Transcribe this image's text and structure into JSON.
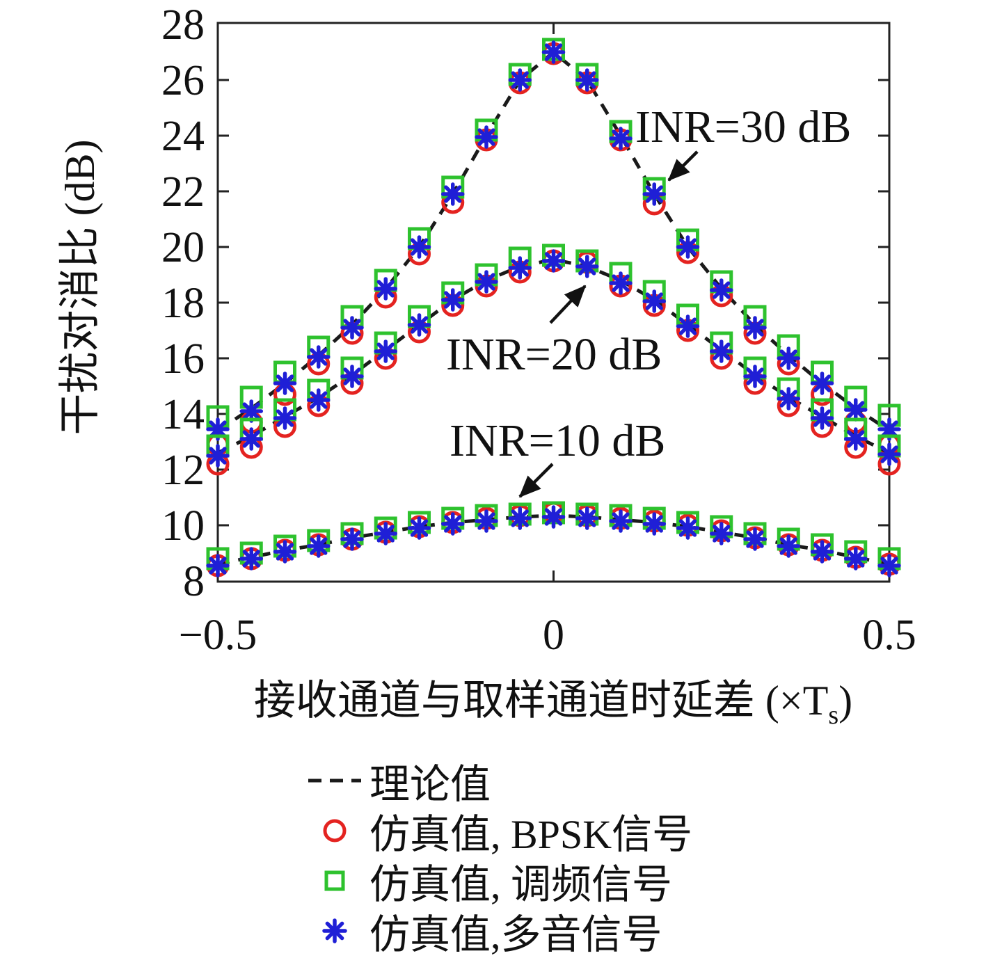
{
  "axes": {
    "y": {
      "title": "干扰对消比 (dB)",
      "ticks": [
        28,
        26,
        24,
        22,
        20,
        18,
        16,
        14,
        12,
        10,
        8
      ],
      "tick_labels": [
        "28",
        "26",
        "24",
        "22",
        "20",
        "18",
        "16",
        "14",
        "12",
        "10",
        "8"
      ],
      "range": [
        8,
        28
      ]
    },
    "x": {
      "title_pre": "接收通道与取样通道时延差 (×T",
      "title_sub": "s",
      "title_post": ")",
      "ticks": [
        -0.5,
        0,
        0.5
      ],
      "tick_labels": [
        "−0.5",
        "0",
        "0.5"
      ],
      "range": [
        -0.5,
        0.5
      ]
    }
  },
  "annotations": [
    {
      "text": "INR=30 dB"
    },
    {
      "text": "INR=20 dB"
    },
    {
      "text": "INR=10 dB"
    }
  ],
  "legend": {
    "items": [
      {
        "marker": "dashed-line",
        "label": "理论值"
      },
      {
        "marker": "red-circle",
        "label": "仿真值, BPSK信号"
      },
      {
        "marker": "green-square",
        "label": "仿真值, 调频信号"
      },
      {
        "marker": "blue-asterisk",
        "label": "仿真值,多音信号"
      }
    ]
  },
  "colors": {
    "theory": "#1a1a1a",
    "bpsk": "#e42320",
    "fm": "#2ec22e",
    "tone": "#1f1fd6"
  },
  "chart_data": {
    "type": "line",
    "xlabel": "接收通道与取样通道时延差 (×Ts)",
    "ylabel": "干扰对消比 (dB)",
    "xlim": [
      -0.5,
      0.5
    ],
    "ylim": [
      8,
      28
    ],
    "grid": false,
    "legend_position": "below",
    "x": [
      -0.5,
      -0.45,
      -0.4,
      -0.35,
      -0.3,
      -0.25,
      -0.2,
      -0.15,
      -0.1,
      -0.05,
      0,
      0.05,
      0.1,
      0.15,
      0.2,
      0.25,
      0.3,
      0.35,
      0.4,
      0.45,
      0.5
    ],
    "curves": [
      {
        "name": "INR=30 dB",
        "theory": [
          13.4,
          14.2,
          15.1,
          16.1,
          17.2,
          18.5,
          20.0,
          21.9,
          24.0,
          26.0,
          27.0,
          26.0,
          24.0,
          21.9,
          20.0,
          18.5,
          17.2,
          16.1,
          15.1,
          14.2,
          13.4
        ],
        "series": [
          {
            "name": "仿真值, BPSK信号",
            "marker": "circle",
            "color_key": "bpsk",
            "values": [
              12.9,
              13.7,
              14.7,
              15.8,
              16.9,
              18.2,
              19.75,
              21.6,
              23.85,
              25.9,
              26.95,
              25.9,
              23.85,
              21.55,
              19.8,
              18.25,
              16.9,
              15.8,
              14.7,
              13.7,
              12.9
            ]
          },
          {
            "name": "仿真值, 调频信号",
            "marker": "square",
            "color_key": "fm",
            "values": [
              13.9,
              14.6,
              15.5,
              16.4,
              17.5,
              18.8,
              20.3,
              22.15,
              24.2,
              26.2,
              27.1,
              26.2,
              24.15,
              22.1,
              20.25,
              18.75,
              17.5,
              16.45,
              15.5,
              14.6,
              13.95
            ]
          },
          {
            "name": "仿真值,多音信号",
            "marker": "asterisk",
            "color_key": "tone",
            "values": [
              13.45,
              14.1,
              15.1,
              16.05,
              17.1,
              18.5,
              20.0,
              21.9,
              23.95,
              26.0,
              27.0,
              26.0,
              23.9,
              21.9,
              20.0,
              18.45,
              17.1,
              16.0,
              15.1,
              14.15,
              13.45
            ]
          }
        ]
      },
      {
        "name": "INR=20 dB",
        "theory": [
          12.6,
          13.2,
          13.9,
          14.6,
          15.4,
          16.3,
          17.2,
          18.1,
          18.8,
          19.3,
          19.55,
          19.3,
          18.8,
          18.1,
          17.2,
          16.3,
          15.4,
          14.6,
          13.9,
          13.2,
          12.6
        ],
        "series": [
          {
            "name": "仿真值, BPSK信号",
            "marker": "circle",
            "color_key": "bpsk",
            "values": [
              12.2,
              12.8,
              13.55,
              14.3,
              15.1,
              16.0,
              16.95,
              17.9,
              18.6,
              19.1,
              19.5,
              19.45,
              18.6,
              17.9,
              17.0,
              16.0,
              15.1,
              14.3,
              13.55,
              12.8,
              12.2
            ]
          },
          {
            "name": "仿真值, 调频信号",
            "marker": "square",
            "color_key": "fm",
            "values": [
              12.85,
              13.45,
              14.15,
              14.85,
              15.65,
              16.55,
              17.5,
              18.35,
              19.0,
              19.6,
              19.7,
              19.5,
              19.05,
              18.4,
              17.55,
              16.55,
              15.65,
              14.9,
              14.15,
              13.45,
              12.85
            ]
          },
          {
            "name": "仿真值,多音信号",
            "marker": "asterisk",
            "color_key": "tone",
            "values": [
              12.5,
              13.1,
              13.85,
              14.5,
              15.35,
              16.25,
              17.2,
              18.1,
              18.75,
              19.25,
              19.5,
              19.3,
              18.7,
              18.05,
              17.15,
              16.25,
              15.35,
              14.55,
              13.85,
              13.1,
              12.55
            ]
          }
        ]
      },
      {
        "name": "INR=10 dB",
        "theory": [
          8.6,
          8.85,
          9.1,
          9.3,
          9.55,
          9.75,
          9.95,
          10.1,
          10.2,
          10.3,
          10.35,
          10.3,
          10.2,
          10.1,
          9.95,
          9.75,
          9.55,
          9.3,
          9.1,
          8.85,
          8.6
        ],
        "series": [
          {
            "name": "仿真值, BPSK信号",
            "marker": "circle",
            "color_key": "bpsk",
            "values": [
              8.55,
              8.8,
              9.1,
              9.3,
              9.5,
              9.75,
              9.95,
              10.1,
              10.25,
              10.35,
              10.45,
              10.35,
              10.25,
              10.15,
              10.0,
              9.8,
              9.55,
              9.3,
              9.1,
              8.85,
              8.6
            ]
          },
          {
            "name": "仿真值, 调频信号",
            "marker": "square",
            "color_key": "fm",
            "values": [
              8.8,
              9.0,
              9.25,
              9.45,
              9.7,
              9.9,
              10.1,
              10.25,
              10.35,
              10.4,
              10.45,
              10.4,
              10.35,
              10.25,
              10.1,
              9.95,
              9.7,
              9.5,
              9.3,
              9.05,
              8.8
            ]
          },
          {
            "name": "仿真值,多音信号",
            "marker": "asterisk",
            "color_key": "tone",
            "values": [
              8.55,
              8.8,
              9.05,
              9.25,
              9.5,
              9.7,
              9.9,
              10.05,
              10.15,
              10.25,
              10.3,
              10.25,
              10.15,
              10.05,
              9.9,
              9.7,
              9.5,
              9.25,
              9.05,
              8.8,
              8.55
            ]
          }
        ]
      }
    ]
  }
}
